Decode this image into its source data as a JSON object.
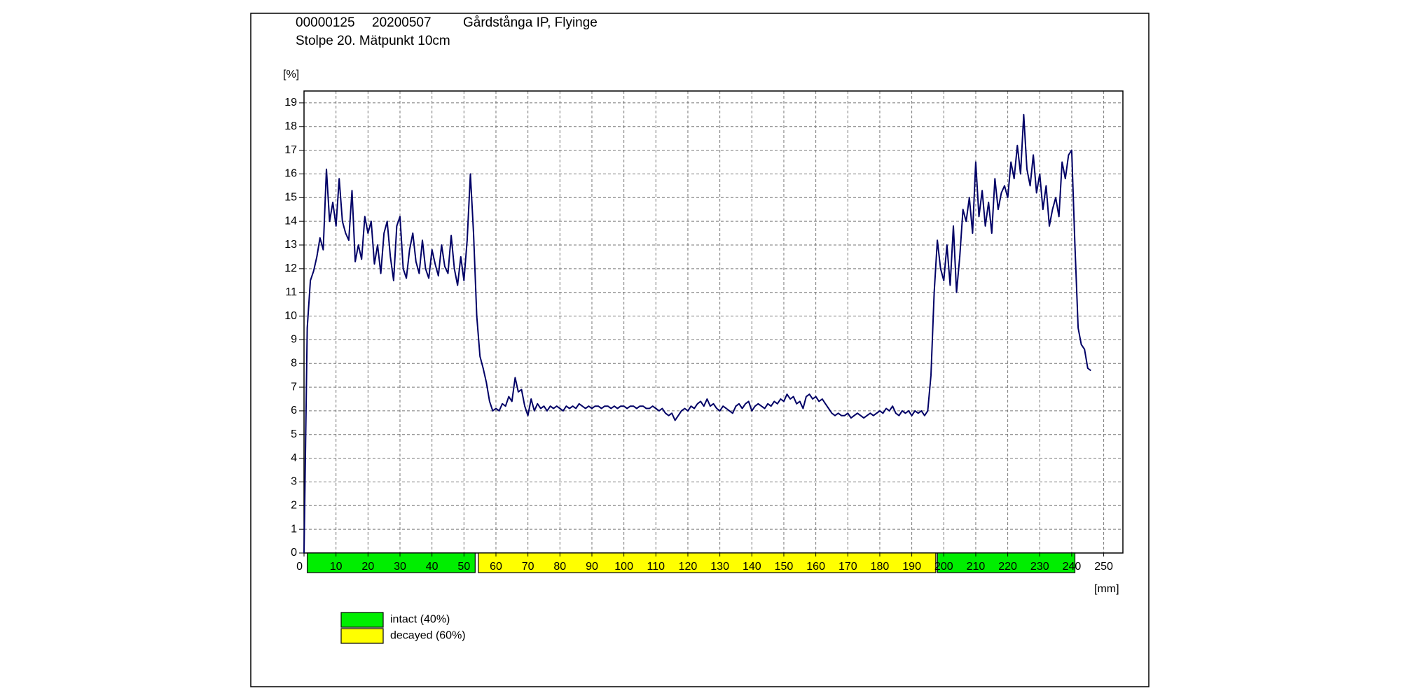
{
  "header": {
    "id": "00000125",
    "date": "20200507",
    "site": "Gårdstånga IP, Flyinge",
    "subtitle": "Stolpe 20. Mätpunkt 10cm"
  },
  "chart_data": {
    "type": "line",
    "y_unit": "[%]",
    "x_unit": "[mm]",
    "color": "#000066",
    "grid": true,
    "xlim": [
      0,
      256
    ],
    "ylim": [
      0,
      19.5
    ],
    "xticks": [
      0,
      10,
      20,
      30,
      40,
      50,
      60,
      70,
      80,
      90,
      100,
      110,
      120,
      130,
      140,
      150,
      160,
      170,
      180,
      190,
      200,
      210,
      220,
      230,
      240,
      250
    ],
    "yticks": [
      0,
      1,
      2,
      3,
      4,
      5,
      6,
      7,
      8,
      9,
      10,
      11,
      12,
      13,
      14,
      15,
      16,
      17,
      18,
      19
    ],
    "x": [
      0,
      1,
      2,
      3,
      4,
      5,
      6,
      7,
      8,
      9,
      10,
      11,
      12,
      13,
      14,
      15,
      16,
      17,
      18,
      19,
      20,
      21,
      22,
      23,
      24,
      25,
      26,
      27,
      28,
      29,
      30,
      31,
      32,
      33,
      34,
      35,
      36,
      37,
      38,
      39,
      40,
      41,
      42,
      43,
      44,
      45,
      46,
      47,
      48,
      49,
      50,
      51,
      52,
      53,
      54,
      55,
      56,
      57,
      58,
      59,
      60,
      61,
      62,
      63,
      64,
      65,
      66,
      67,
      68,
      69,
      70,
      71,
      72,
      73,
      74,
      75,
      76,
      77,
      78,
      79,
      80,
      81,
      82,
      83,
      84,
      85,
      86,
      87,
      88,
      89,
      90,
      91,
      92,
      93,
      94,
      95,
      96,
      97,
      98,
      99,
      100,
      101,
      102,
      103,
      104,
      105,
      106,
      107,
      108,
      109,
      110,
      111,
      112,
      113,
      114,
      115,
      116,
      117,
      118,
      119,
      120,
      121,
      122,
      123,
      124,
      125,
      126,
      127,
      128,
      129,
      130,
      131,
      132,
      133,
      134,
      135,
      136,
      137,
      138,
      139,
      140,
      141,
      142,
      143,
      144,
      145,
      146,
      147,
      148,
      149,
      150,
      151,
      152,
      153,
      154,
      155,
      156,
      157,
      158,
      159,
      160,
      161,
      162,
      163,
      164,
      165,
      166,
      167,
      168,
      169,
      170,
      171,
      172,
      173,
      174,
      175,
      176,
      177,
      178,
      179,
      180,
      181,
      182,
      183,
      184,
      185,
      186,
      187,
      188,
      189,
      190,
      191,
      192,
      193,
      194,
      195,
      196,
      197,
      198,
      199,
      200,
      201,
      202,
      203,
      204,
      205,
      206,
      207,
      208,
      209,
      210,
      211,
      212,
      213,
      214,
      215,
      216,
      217,
      218,
      219,
      220,
      221,
      222,
      223,
      224,
      225,
      226,
      227,
      228,
      229,
      230,
      231,
      232,
      233,
      234,
      235,
      236,
      237,
      238,
      239,
      240,
      241,
      242,
      243,
      244,
      245,
      246
    ],
    "values": [
      0,
      9.5,
      11.5,
      11.9,
      12.5,
      13.3,
      12.8,
      16.2,
      14.0,
      14.8,
      13.8,
      15.8,
      14.0,
      13.5,
      13.2,
      15.3,
      12.3,
      13.0,
      12.4,
      14.2,
      13.5,
      14.0,
      12.2,
      13.0,
      11.8,
      13.5,
      14.0,
      12.5,
      11.5,
      13.8,
      14.2,
      12.0,
      11.6,
      12.8,
      13.5,
      12.3,
      11.8,
      13.2,
      12.0,
      11.6,
      12.8,
      12.2,
      11.7,
      13.0,
      12.1,
      11.8,
      13.4,
      12.0,
      11.3,
      12.5,
      11.5,
      13.2,
      16.0,
      13.5,
      10.0,
      8.3,
      7.8,
      7.2,
      6.4,
      6.0,
      6.1,
      6.0,
      6.3,
      6.2,
      6.6,
      6.4,
      7.4,
      6.8,
      6.9,
      6.2,
      5.8,
      6.5,
      6.0,
      6.3,
      6.1,
      6.2,
      6.0,
      6.2,
      6.1,
      6.2,
      6.1,
      6.0,
      6.2,
      6.1,
      6.2,
      6.1,
      6.3,
      6.2,
      6.1,
      6.2,
      6.1,
      6.2,
      6.2,
      6.1,
      6.2,
      6.2,
      6.1,
      6.2,
      6.1,
      6.2,
      6.2,
      6.1,
      6.2,
      6.2,
      6.1,
      6.2,
      6.2,
      6.1,
      6.1,
      6.2,
      6.1,
      6.0,
      6.1,
      5.9,
      5.8,
      5.9,
      5.6,
      5.8,
      6.0,
      6.1,
      6.0,
      6.2,
      6.1,
      6.3,
      6.4,
      6.2,
      6.5,
      6.2,
      6.3,
      6.1,
      6.0,
      6.2,
      6.1,
      6.0,
      5.9,
      6.2,
      6.3,
      6.1,
      6.3,
      6.4,
      6.0,
      6.2,
      6.3,
      6.2,
      6.1,
      6.3,
      6.2,
      6.4,
      6.3,
      6.5,
      6.4,
      6.7,
      6.5,
      6.6,
      6.3,
      6.4,
      6.1,
      6.6,
      6.7,
      6.5,
      6.6,
      6.4,
      6.5,
      6.3,
      6.1,
      5.9,
      5.8,
      5.9,
      5.8,
      5.8,
      5.9,
      5.7,
      5.8,
      5.9,
      5.8,
      5.7,
      5.8,
      5.9,
      5.8,
      5.9,
      6.0,
      5.9,
      6.1,
      6.0,
      6.2,
      5.9,
      5.8,
      6.0,
      5.9,
      6.0,
      5.8,
      6.0,
      5.9,
      6.0,
      5.8,
      6.0,
      7.5,
      11.0,
      13.2,
      12.0,
      11.5,
      13.0,
      11.3,
      13.8,
      11.0,
      12.5,
      14.5,
      14.0,
      15.0,
      13.5,
      16.5,
      14.2,
      15.3,
      13.8,
      14.8,
      13.5,
      15.8,
      14.5,
      15.2,
      15.5,
      15.0,
      16.5,
      15.8,
      17.2,
      16.0,
      18.5,
      16.2,
      15.5,
      16.8,
      15.2,
      16.0,
      14.5,
      15.5,
      13.8,
      14.5,
      15.0,
      14.2,
      16.5,
      15.8,
      16.8,
      17.0,
      13.0,
      9.5,
      8.8,
      8.6,
      7.8,
      7.7
    ],
    "zones": [
      {
        "start": 1,
        "end": 53.5,
        "color": "#00ee00"
      },
      {
        "start": 54.5,
        "end": 197.5,
        "color": "#ffff00"
      },
      {
        "start": 198,
        "end": 241,
        "color": "#00ee00"
      }
    ],
    "legend": [
      {
        "label": "intact (40%)",
        "color": "#00ee00"
      },
      {
        "label": "decayed (60%)",
        "color": "#ffff00"
      }
    ]
  }
}
